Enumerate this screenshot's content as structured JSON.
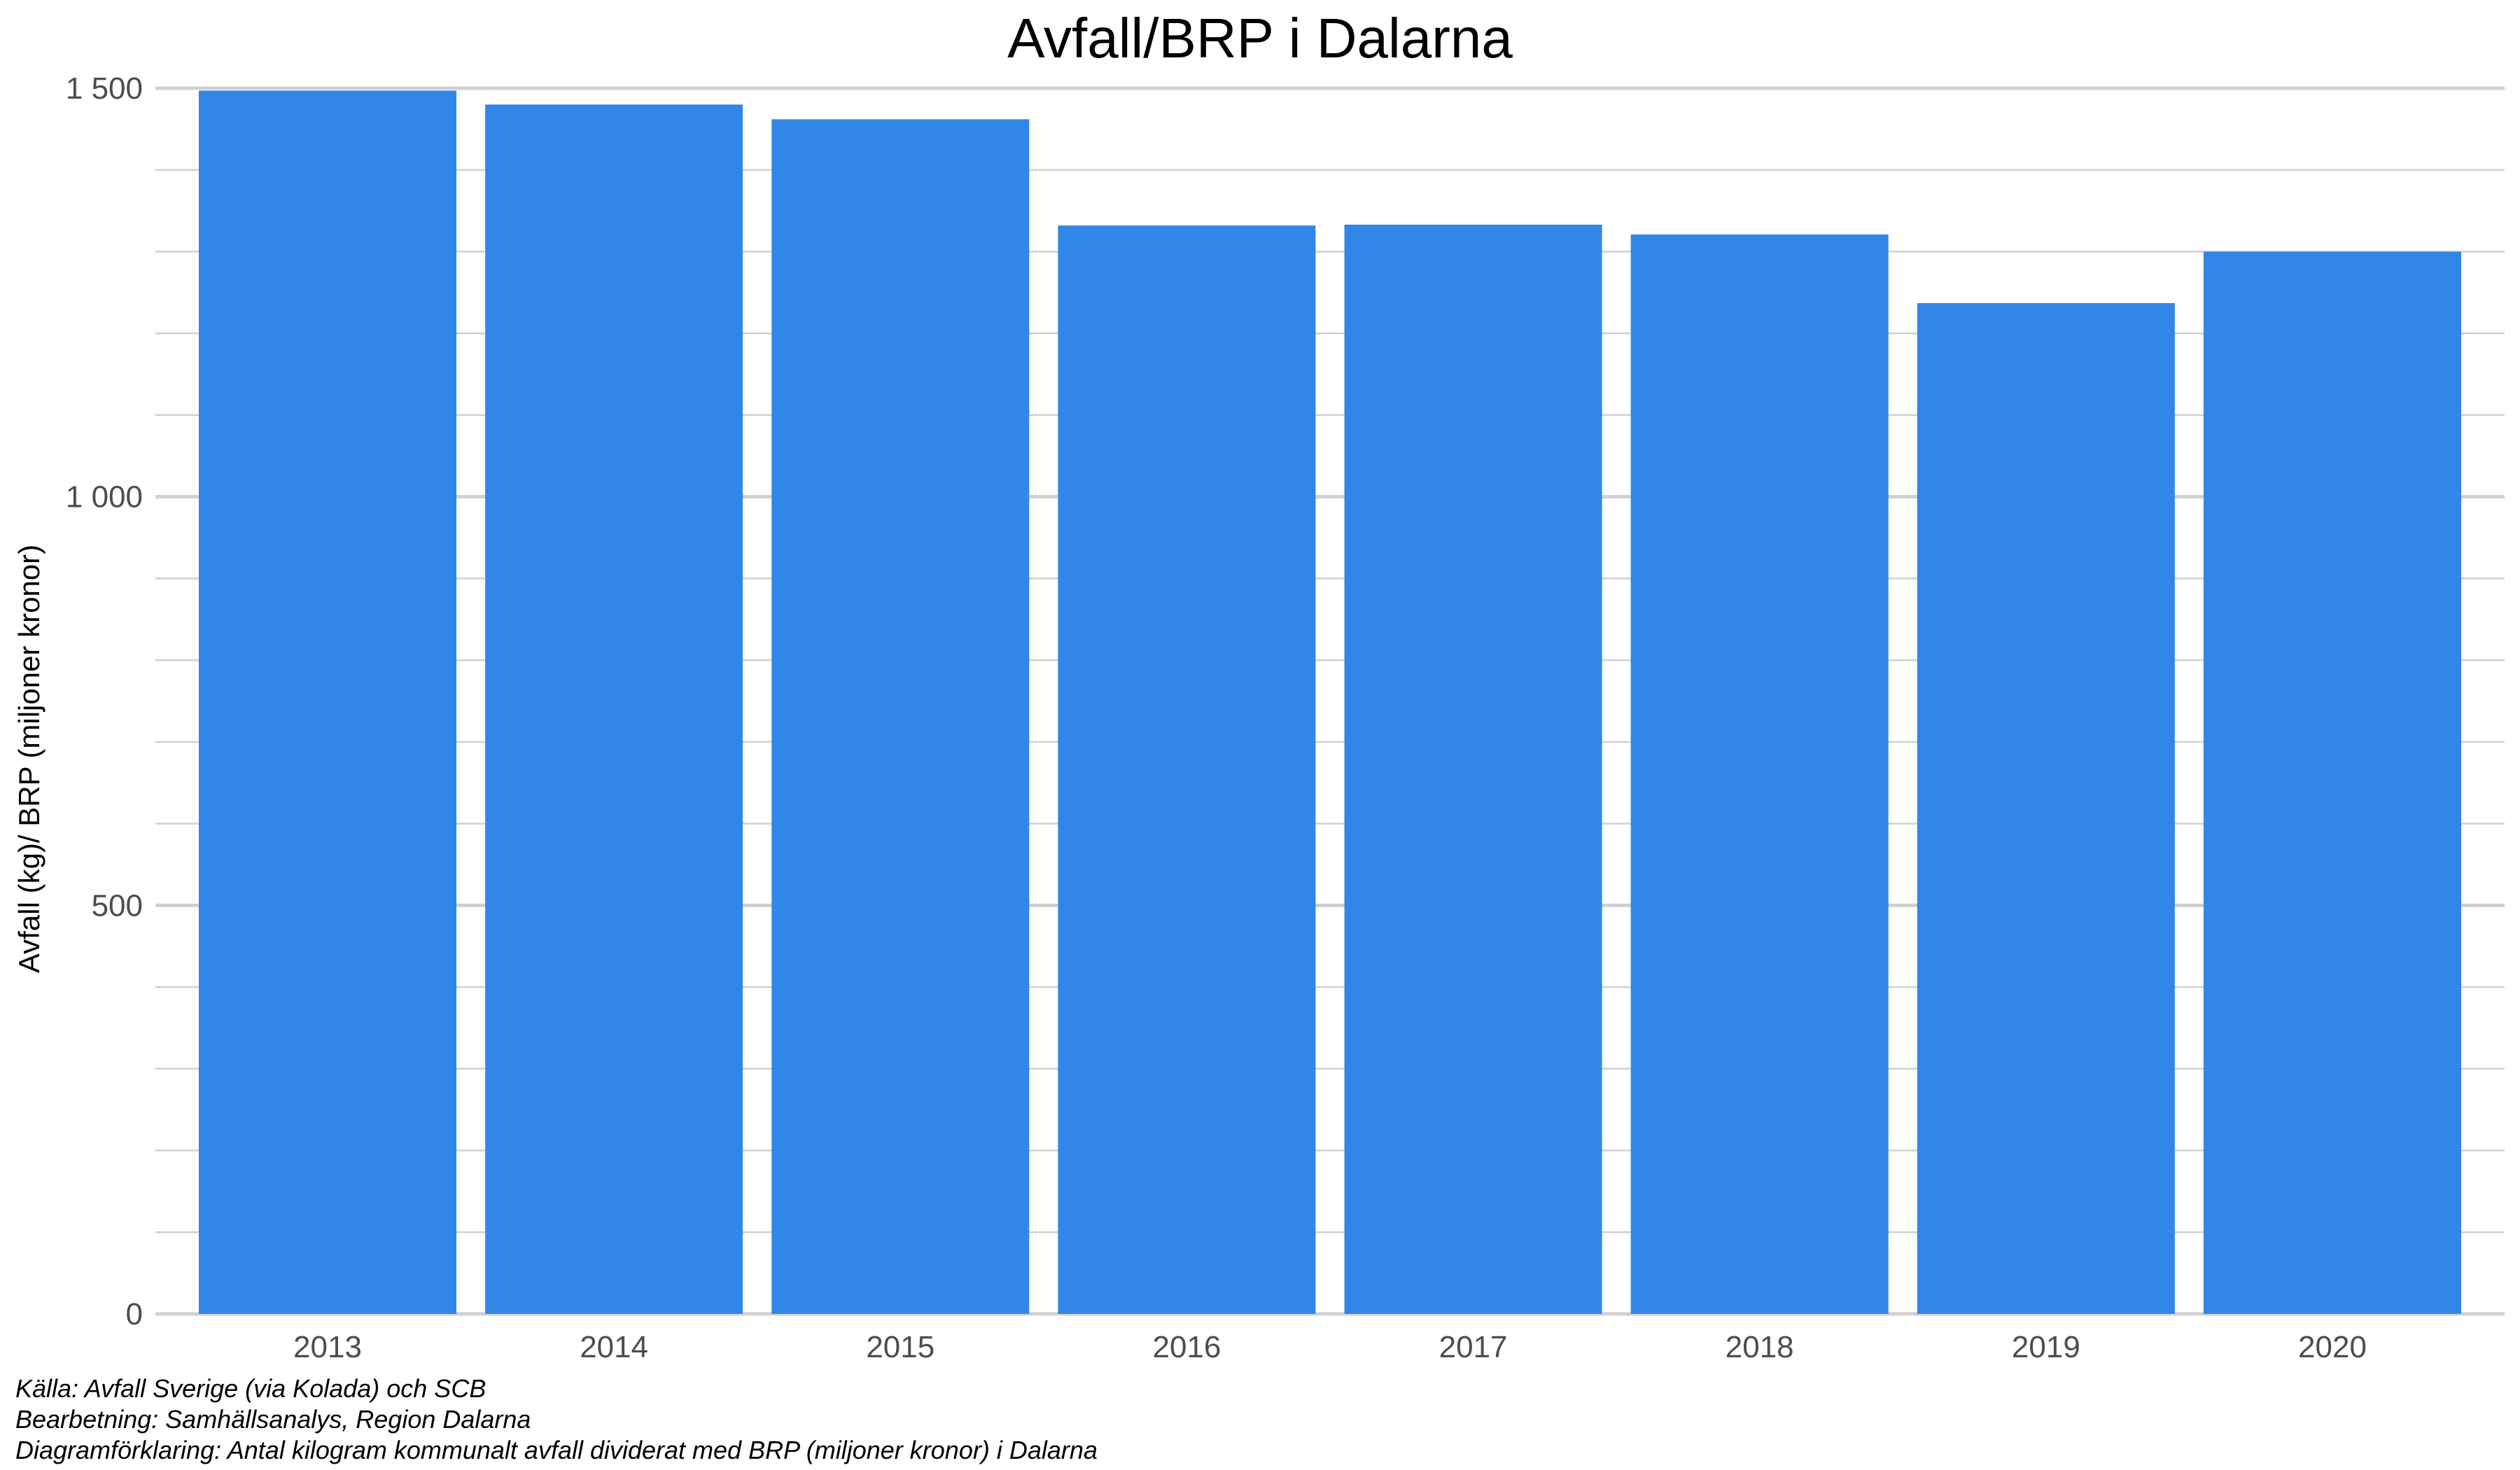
{
  "chart_data": {
    "type": "bar",
    "title": "Avfall/BRP i Dalarna",
    "xlabel": "",
    "ylabel": "Avfall (kg)/ BRP (miljoner kronor)",
    "categories": [
      "2013",
      "2014",
      "2015",
      "2016",
      "2017",
      "2018",
      "2019",
      "2020"
    ],
    "values": [
      1497,
      1480,
      1462,
      1332,
      1333,
      1321,
      1237,
      1300
    ],
    "ylim": [
      0,
      1500
    ],
    "yticks": [
      0,
      500,
      1000,
      1500
    ],
    "ytick_labels": [
      "0",
      "500",
      "1 000",
      "1 500"
    ],
    "minor_gridline_step": 100,
    "grid": true,
    "bar_color": "#3087e8",
    "grid_color": "#d0d0d0"
  },
  "captions": {
    "source": "Källa: Avfall Sverige (via Kolada) och SCB",
    "processing": "Bearbetning: Samhällsanalys, Region Dalarna",
    "explanation": "Diagramförklaring: Antal kilogram kommunalt avfall dividerat med BRP (miljoner kronor) i Dalarna"
  }
}
